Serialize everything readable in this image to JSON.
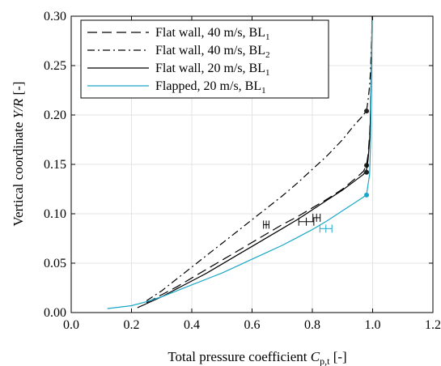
{
  "chart_data": {
    "type": "line",
    "xlabel": "Total pressure coefficient",
    "xlabel_symbol": "C",
    "xlabel_sub": "p,t",
    "xlabel_unit": "[-]",
    "ylabel": "Vertical coordinate",
    "ylabel_symbol": "Y/R",
    "ylabel_unit": "[-]",
    "xlim": [
      0.0,
      1.2
    ],
    "ylim": [
      0.0,
      0.3
    ],
    "xticks": [
      "0.0",
      "0.2",
      "0.4",
      "0.6",
      "0.8",
      "1.0",
      "1.2"
    ],
    "yticks": [
      "0.00",
      "0.05",
      "0.10",
      "0.15",
      "0.20",
      "0.25",
      "0.30"
    ],
    "grid": true,
    "legend_position": "top-left",
    "series": [
      {
        "name": "Flat wall, 40 m/s, BL",
        "subscript": "1",
        "style": "dashed",
        "color": "#000000",
        "x": [
          0.25,
          0.3,
          0.35,
          0.4,
          0.45,
          0.5,
          0.55,
          0.6,
          0.65,
          0.7,
          0.75,
          0.8,
          0.85,
          0.9,
          0.94,
          0.97,
          0.98,
          0.985,
          0.99,
          0.993,
          0.995,
          0.997,
          0.998
        ],
        "y": [
          0.01,
          0.018,
          0.026,
          0.035,
          0.044,
          0.053,
          0.062,
          0.071,
          0.08,
          0.089,
          0.097,
          0.106,
          0.115,
          0.125,
          0.135,
          0.143,
          0.15,
          0.16,
          0.18,
          0.2,
          0.23,
          0.27,
          0.3
        ],
        "marker": {
          "x": 0.98,
          "y": 0.149
        },
        "errorbar": {
          "x": 0.814,
          "y": 0.096,
          "xerr": 0.012
        }
      },
      {
        "name": "Flat wall, 40 m/s, BL",
        "subscript": "2",
        "style": "dashdot",
        "color": "#000000",
        "x": [
          0.25,
          0.3,
          0.35,
          0.4,
          0.45,
          0.5,
          0.55,
          0.6,
          0.65,
          0.7,
          0.75,
          0.8,
          0.85,
          0.9,
          0.94,
          0.97,
          0.98,
          0.985,
          0.99,
          0.993,
          0.995,
          0.997,
          0.998
        ],
        "y": [
          0.012,
          0.022,
          0.034,
          0.046,
          0.058,
          0.07,
          0.082,
          0.094,
          0.106,
          0.118,
          0.131,
          0.145,
          0.159,
          0.175,
          0.19,
          0.2,
          0.205,
          0.215,
          0.23,
          0.245,
          0.26,
          0.28,
          0.3
        ],
        "marker": {
          "x": 0.98,
          "y": 0.204
        },
        "errorbar": {
          "x": 0.647,
          "y": 0.089,
          "xerr": 0.009
        }
      },
      {
        "name": "Flat wall, 20 m/s, BL",
        "subscript": "1",
        "style": "solid",
        "color": "#000000",
        "x": [
          0.22,
          0.25,
          0.3,
          0.35,
          0.4,
          0.45,
          0.5,
          0.55,
          0.6,
          0.65,
          0.7,
          0.75,
          0.8,
          0.85,
          0.9,
          0.94,
          0.97,
          0.98,
          0.985,
          0.99,
          0.993,
          0.995,
          0.997,
          0.998
        ],
        "y": [
          0.005,
          0.009,
          0.016,
          0.024,
          0.032,
          0.04,
          0.049,
          0.058,
          0.067,
          0.076,
          0.085,
          0.094,
          0.104,
          0.114,
          0.124,
          0.133,
          0.14,
          0.145,
          0.155,
          0.175,
          0.2,
          0.23,
          0.27,
          0.3
        ],
        "marker": {
          "x": 0.98,
          "y": 0.142
        },
        "errorbar": {
          "x": 0.78,
          "y": 0.092,
          "xerr": 0.025
        }
      },
      {
        "name": "Flapped, 20 m/s, BL",
        "subscript": "1",
        "style": "solid",
        "color": "#1aa7c9",
        "x": [
          0.12,
          0.2,
          0.25,
          0.3,
          0.35,
          0.4,
          0.45,
          0.5,
          0.55,
          0.6,
          0.65,
          0.7,
          0.75,
          0.8,
          0.85,
          0.9,
          0.94,
          0.97,
          0.98,
          0.99,
          0.993,
          0.995,
          0.997,
          0.998
        ],
        "y": [
          0.004,
          0.007,
          0.011,
          0.016,
          0.022,
          0.028,
          0.034,
          0.04,
          0.047,
          0.054,
          0.061,
          0.068,
          0.076,
          0.084,
          0.093,
          0.103,
          0.111,
          0.117,
          0.12,
          0.14,
          0.17,
          0.21,
          0.26,
          0.3
        ],
        "marker": {
          "x": 0.98,
          "y": 0.119
        },
        "errorbar": {
          "x": 0.845,
          "y": 0.085,
          "xerr": 0.02
        }
      }
    ]
  }
}
